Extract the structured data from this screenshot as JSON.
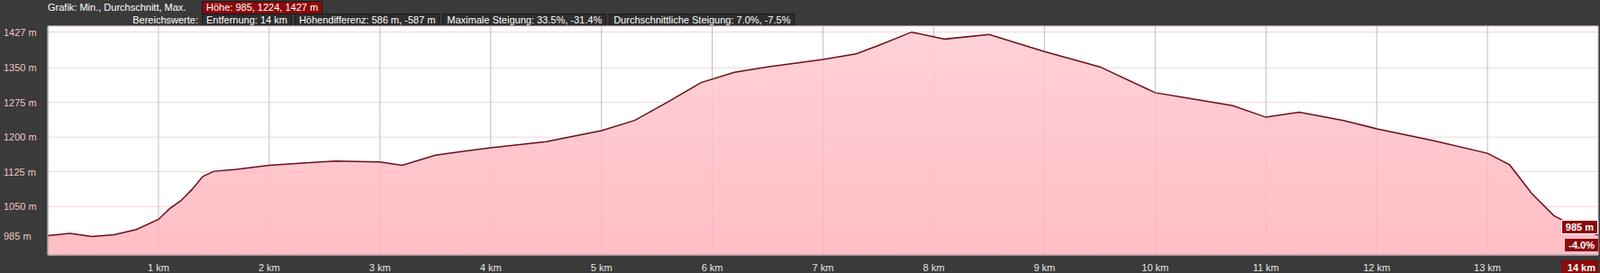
{
  "chart_data": {
    "type": "area",
    "info_bar": {
      "row1_label": "Grafik: Min., Durchschnitt, Max.",
      "row1_values": [
        "Höhe: 985, 1224, 1427 m"
      ],
      "row2_label": "Bereichswerte:",
      "row2_values": [
        "Entfernung: 14 km",
        "Höhendifferenz: 586 m, -587 m",
        "Maximale Steigung: 33.5%, -31.4%",
        "Durchschnittliche Steigung: 7.0%, -7.5%"
      ]
    },
    "annotations": [
      "985 m",
      "-4.0%"
    ],
    "x": [
      0,
      0.2,
      0.4,
      0.6,
      0.8,
      1.0,
      1.1,
      1.2,
      1.3,
      1.4,
      1.5,
      1.7,
      2.0,
      2.3,
      2.6,
      3.0,
      3.2,
      3.5,
      4.0,
      4.5,
      5.0,
      5.3,
      5.6,
      5.9,
      6.2,
      6.5,
      7.0,
      7.3,
      7.5,
      7.8,
      8.1,
      8.5,
      9.0,
      9.5,
      10.0,
      10.3,
      10.7,
      11.0,
      11.3,
      11.7,
      12.0,
      12.5,
      13.0,
      13.2,
      13.4,
      13.6,
      13.8,
      14.0
    ],
    "values": [
      987,
      992,
      985,
      989,
      1000,
      1022,
      1045,
      1062,
      1086,
      1115,
      1126,
      1130,
      1139,
      1144,
      1148,
      1146,
      1139,
      1161,
      1177,
      1190,
      1214,
      1236,
      1276,
      1318,
      1340,
      1352,
      1368,
      1380,
      1398,
      1427,
      1412,
      1422,
      1385,
      1352,
      1296,
      1284,
      1268,
      1243,
      1254,
      1236,
      1218,
      1193,
      1165,
      1140,
      1078,
      1030,
      1005,
      988
    ],
    "color": "#6b0f1a",
    "xlim": [
      0,
      14
    ],
    "xticks": [
      {
        "value": 1,
        "label": "1 km"
      },
      {
        "value": 2,
        "label": "2 km"
      },
      {
        "value": 3,
        "label": "3 km"
      },
      {
        "value": 4,
        "label": "4 km"
      },
      {
        "value": 5,
        "label": "5 km"
      },
      {
        "value": 6,
        "label": "6 km"
      },
      {
        "value": 7,
        "label": "7 km"
      },
      {
        "value": 8,
        "label": "8 km"
      },
      {
        "value": 9,
        "label": "9 km"
      },
      {
        "value": 10,
        "label": "10 km"
      },
      {
        "value": 11,
        "label": "11 km"
      },
      {
        "value": 12,
        "label": "12 km"
      },
      {
        "value": 13,
        "label": "13 km"
      },
      {
        "value": 14,
        "label": "14 km"
      }
    ],
    "ylim": [
      945,
      1440
    ],
    "yticks": [
      {
        "value": 985,
        "label": "985 m"
      },
      {
        "value": 1050,
        "label": "1050 m"
      },
      {
        "value": 1125,
        "label": "1125 m"
      },
      {
        "value": 1200,
        "label": "1200 m"
      },
      {
        "value": 1275,
        "label": "1275 m"
      },
      {
        "value": 1350,
        "label": "1350 m"
      },
      {
        "value": 1427,
        "label": "1427 m"
      }
    ],
    "grid": true
  }
}
